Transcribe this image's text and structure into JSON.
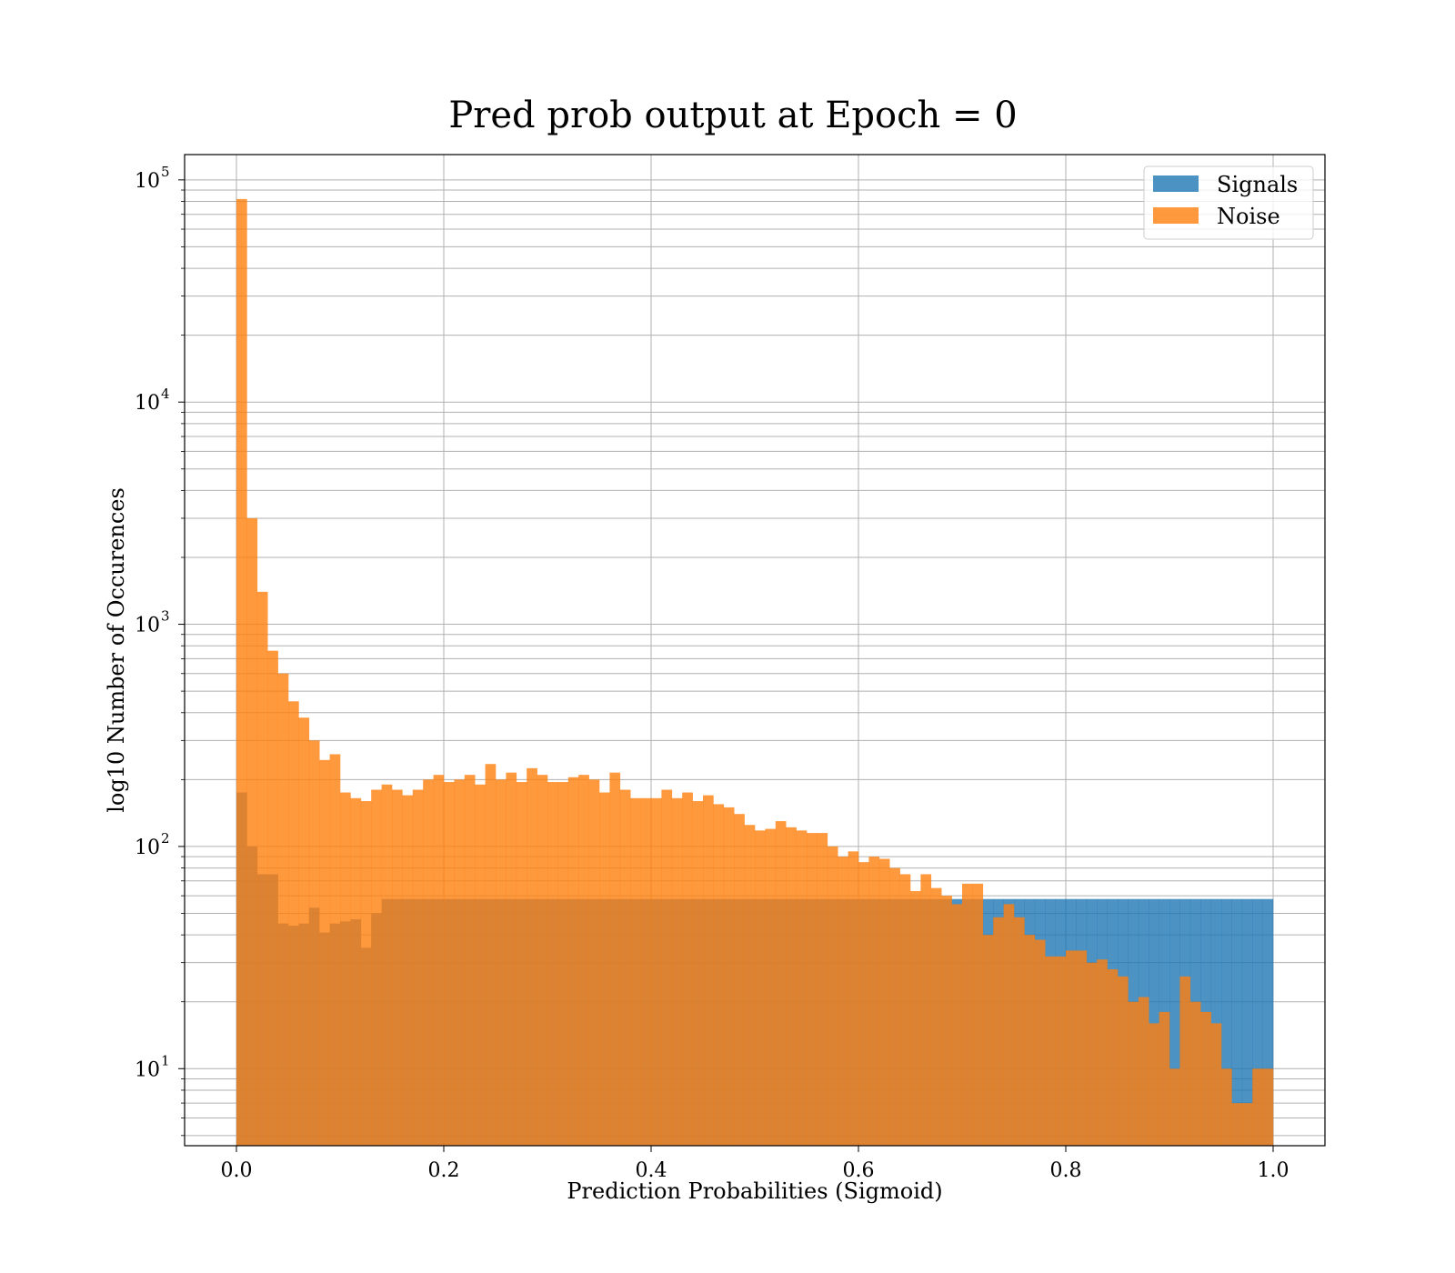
{
  "chart_data": {
    "type": "bar",
    "title": "Pred prob output at Epoch = 0",
    "xlabel": "Prediction Probabilities (Sigmoid)",
    "ylabel": "log10 Number of Occurences",
    "x_scale": "linear",
    "y_scale": "log",
    "xlim": [
      -0.05,
      1.05
    ],
    "ylim": [
      4.5,
      130000
    ],
    "x_ticks": [
      0.0,
      0.2,
      0.4,
      0.6,
      0.8,
      1.0
    ],
    "x_tick_labels": [
      "0.0",
      "0.2",
      "0.4",
      "0.6",
      "0.8",
      "1.0"
    ],
    "y_ticks": [
      10,
      100,
      1000,
      10000,
      100000
    ],
    "y_tick_labels": [
      {
        "base": "10",
        "exp": "1"
      },
      {
        "base": "10",
        "exp": "2"
      },
      {
        "base": "10",
        "exp": "3"
      },
      {
        "base": "10",
        "exp": "4"
      },
      {
        "base": "10",
        "exp": "5"
      }
    ],
    "grid": true,
    "grid_minor_y": true,
    "legend_position": "top-right",
    "bins": 100,
    "bin_range": [
      0.0,
      1.0
    ],
    "series": [
      {
        "name": "Signals",
        "color": "#1f77b4",
        "opacity": 0.8,
        "counts": [
          175,
          100,
          75,
          75,
          45,
          44,
          45,
          53,
          41,
          45,
          46,
          47,
          35,
          50,
          58,
          58,
          58,
          58,
          58,
          58,
          58,
          58,
          58,
          58,
          58,
          58,
          58,
          58,
          58,
          58,
          58,
          58,
          58,
          58,
          58,
          58,
          58,
          58,
          58,
          58,
          58,
          58,
          58,
          58,
          58,
          58,
          58,
          58,
          58,
          58,
          58,
          58,
          58,
          58,
          58,
          58,
          58,
          58,
          58,
          58,
          58,
          58,
          58,
          58,
          58,
          58,
          58,
          58,
          58,
          58,
          58,
          58,
          58,
          58,
          58,
          58,
          58,
          58,
          58,
          58,
          58,
          58,
          58,
          58,
          58,
          58,
          58,
          58,
          58,
          58,
          58,
          58,
          58,
          58,
          58,
          58,
          58,
          58,
          58,
          58
        ]
      },
      {
        "name": "Noise",
        "color": "#ff7f0e",
        "opacity": 0.8,
        "counts": [
          82000,
          3000,
          1400,
          760,
          600,
          450,
          380,
          300,
          245,
          260,
          175,
          165,
          160,
          180,
          190,
          180,
          170,
          180,
          200,
          210,
          195,
          200,
          210,
          190,
          235,
          200,
          215,
          195,
          225,
          210,
          195,
          195,
          205,
          210,
          200,
          175,
          215,
          180,
          165,
          165,
          165,
          180,
          165,
          175,
          160,
          170,
          155,
          150,
          140,
          125,
          118,
          120,
          130,
          122,
          118,
          115,
          115,
          100,
          90,
          95,
          85,
          90,
          88,
          80,
          75,
          63,
          75,
          65,
          60,
          55,
          68,
          68,
          40,
          48,
          55,
          48,
          40,
          38,
          32,
          32,
          34,
          34,
          30,
          31,
          28,
          26,
          20,
          21,
          16,
          18,
          10,
          26,
          20,
          18,
          16,
          10,
          7,
          7,
          10,
          10
        ]
      }
    ]
  }
}
